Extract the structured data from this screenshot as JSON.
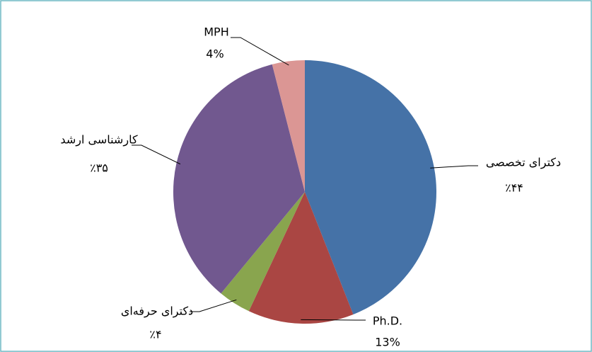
{
  "chart_data": {
    "type": "pie",
    "categories": [
      "دکترای تخصصی",
      "Ph.D.",
      "دکترای حرفه‌ای",
      "کارشناسی ارشد",
      "MPH"
    ],
    "values": [
      44,
      13,
      4,
      35,
      4
    ],
    "value_labels": [
      "٪۴۴",
      "13%",
      "٪۴",
      "٪۳۵",
      "4%"
    ],
    "colors": [
      "#4572a7",
      "#aa4643",
      "#89a54e",
      "#71588f",
      "#db9694"
    ]
  }
}
